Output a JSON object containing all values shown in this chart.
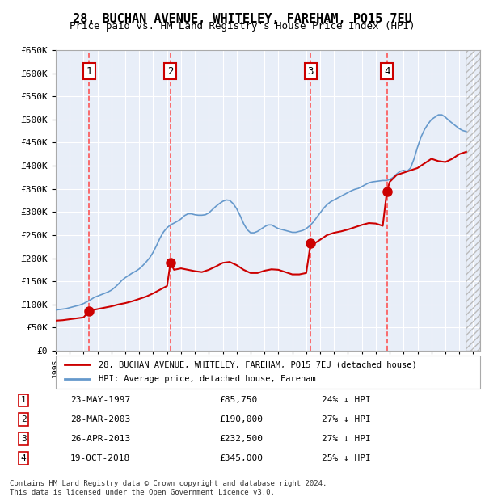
{
  "title": "28, BUCHAN AVENUE, WHITELEY, FAREHAM, PO15 7EU",
  "subtitle": "Price paid vs. HM Land Registry's House Price Index (HPI)",
  "legend_label_red": "28, BUCHAN AVENUE, WHITELEY, FAREHAM, PO15 7EU (detached house)",
  "legend_label_blue": "HPI: Average price, detached house, Fareham",
  "copyright": "Contains HM Land Registry data © Crown copyright and database right 2024.\nThis data is licensed under the Open Government Licence v3.0.",
  "ylim": [
    0,
    650000
  ],
  "yticks": [
    0,
    50000,
    100000,
    150000,
    200000,
    250000,
    300000,
    350000,
    400000,
    450000,
    500000,
    550000,
    600000,
    650000
  ],
  "ytick_labels": [
    "£0",
    "£50K",
    "£100K",
    "£150K",
    "£200K",
    "£250K",
    "£300K",
    "£350K",
    "£400K",
    "£450K",
    "£500K",
    "£550K",
    "£600K",
    "£650K"
  ],
  "xlim_start": 1995.0,
  "xlim_end": 2025.5,
  "sales": [
    {
      "num": 1,
      "date": "23-MAY-1997",
      "year": 1997.39,
      "price": 85750,
      "pct": "24%",
      "label": "23-MAY-1997",
      "price_str": "£85,750"
    },
    {
      "num": 2,
      "date": "28-MAR-2003",
      "year": 2003.24,
      "price": 190000,
      "pct": "27%",
      "label": "28-MAR-2003",
      "price_str": "£190,000"
    },
    {
      "num": 3,
      "date": "26-APR-2013",
      "year": 2013.32,
      "price": 232500,
      "pct": "27%",
      "label": "26-APR-2013",
      "price_str": "£232,500"
    },
    {
      "num": 4,
      "date": "19-OCT-2018",
      "year": 2018.8,
      "price": 345000,
      "pct": "25%",
      "label": "19-OCT-2018",
      "price_str": "£345,000"
    }
  ],
  "hpi_x": [
    1995.0,
    1995.25,
    1995.5,
    1995.75,
    1996.0,
    1996.25,
    1996.5,
    1996.75,
    1997.0,
    1997.25,
    1997.5,
    1997.75,
    1998.0,
    1998.25,
    1998.5,
    1998.75,
    1999.0,
    1999.25,
    1999.5,
    1999.75,
    2000.0,
    2000.25,
    2000.5,
    2000.75,
    2001.0,
    2001.25,
    2001.5,
    2001.75,
    2002.0,
    2002.25,
    2002.5,
    2002.75,
    2003.0,
    2003.25,
    2003.5,
    2003.75,
    2004.0,
    2004.25,
    2004.5,
    2004.75,
    2005.0,
    2005.25,
    2005.5,
    2005.75,
    2006.0,
    2006.25,
    2006.5,
    2006.75,
    2007.0,
    2007.25,
    2007.5,
    2007.75,
    2008.0,
    2008.25,
    2008.5,
    2008.75,
    2009.0,
    2009.25,
    2009.5,
    2009.75,
    2010.0,
    2010.25,
    2010.5,
    2010.75,
    2011.0,
    2011.25,
    2011.5,
    2011.75,
    2012.0,
    2012.25,
    2012.5,
    2012.75,
    2013.0,
    2013.25,
    2013.5,
    2013.75,
    2014.0,
    2014.25,
    2014.5,
    2014.75,
    2015.0,
    2015.25,
    2015.5,
    2015.75,
    2016.0,
    2016.25,
    2016.5,
    2016.75,
    2017.0,
    2017.25,
    2017.5,
    2017.75,
    2018.0,
    2018.25,
    2018.5,
    2018.75,
    2019.0,
    2019.25,
    2019.5,
    2019.75,
    2020.0,
    2020.25,
    2020.5,
    2020.75,
    2021.0,
    2021.25,
    2021.5,
    2021.75,
    2022.0,
    2022.25,
    2022.5,
    2022.75,
    2023.0,
    2023.25,
    2023.5,
    2023.75,
    2024.0,
    2024.25,
    2024.5
  ],
  "hpi_y": [
    88000,
    89000,
    90000,
    91000,
    93000,
    95000,
    97000,
    99000,
    102000,
    106000,
    110000,
    115000,
    118000,
    121000,
    124000,
    127000,
    131000,
    137000,
    144000,
    152000,
    158000,
    163000,
    168000,
    172000,
    177000,
    184000,
    192000,
    201000,
    213000,
    228000,
    244000,
    257000,
    266000,
    272000,
    276000,
    280000,
    285000,
    292000,
    296000,
    296000,
    294000,
    293000,
    293000,
    294000,
    298000,
    305000,
    312000,
    318000,
    323000,
    326000,
    325000,
    318000,
    307000,
    292000,
    275000,
    262000,
    255000,
    255000,
    258000,
    263000,
    268000,
    272000,
    272000,
    268000,
    264000,
    262000,
    260000,
    258000,
    256000,
    256000,
    258000,
    260000,
    264000,
    270000,
    278000,
    288000,
    298000,
    308000,
    316000,
    322000,
    326000,
    330000,
    334000,
    338000,
    342000,
    346000,
    349000,
    351000,
    355000,
    359000,
    363000,
    365000,
    366000,
    367000,
    368000,
    368000,
    370000,
    375000,
    382000,
    388000,
    390000,
    388000,
    395000,
    415000,
    440000,
    462000,
    478000,
    490000,
    500000,
    505000,
    510000,
    510000,
    505000,
    498000,
    492000,
    486000,
    480000,
    476000,
    474000
  ],
  "price_x": [
    1995.0,
    1995.5,
    1996.0,
    1996.5,
    1997.0,
    1997.39,
    1997.5,
    1998.0,
    1998.5,
    1999.0,
    1999.5,
    2000.0,
    2000.5,
    2001.0,
    2001.5,
    2002.0,
    2002.5,
    2003.0,
    2003.24,
    2003.5,
    2004.0,
    2004.5,
    2005.0,
    2005.5,
    2006.0,
    2006.5,
    2007.0,
    2007.5,
    2008.0,
    2008.5,
    2009.0,
    2009.5,
    2010.0,
    2010.5,
    2011.0,
    2011.5,
    2012.0,
    2012.5,
    2013.0,
    2013.32,
    2013.5,
    2014.0,
    2014.5,
    2015.0,
    2015.5,
    2016.0,
    2016.5,
    2017.0,
    2017.5,
    2018.0,
    2018.5,
    2018.8,
    2019.0,
    2019.5,
    2020.0,
    2020.5,
    2021.0,
    2021.5,
    2022.0,
    2022.5,
    2023.0,
    2023.5,
    2024.0,
    2024.5
  ],
  "price_y": [
    65000,
    66000,
    68000,
    70000,
    72000,
    85750,
    87000,
    90000,
    93000,
    96000,
    100000,
    103000,
    107000,
    112000,
    117000,
    124000,
    132000,
    140000,
    190000,
    175000,
    178000,
    175000,
    172000,
    170000,
    175000,
    182000,
    190000,
    192000,
    185000,
    175000,
    168000,
    168000,
    173000,
    176000,
    175000,
    170000,
    165000,
    165000,
    168000,
    232500,
    230000,
    240000,
    250000,
    255000,
    258000,
    262000,
    267000,
    272000,
    276000,
    275000,
    270000,
    345000,
    365000,
    380000,
    385000,
    390000,
    395000,
    405000,
    415000,
    410000,
    408000,
    415000,
    425000,
    430000
  ],
  "bg_color": "#e8eef8",
  "grid_color": "#ffffff",
  "red_line_color": "#cc0000",
  "blue_line_color": "#6699cc",
  "marker_color": "#cc0000",
  "dashed_line_color": "#ff4444",
  "box_color": "#cc0000",
  "hatch_color": "#cccccc"
}
